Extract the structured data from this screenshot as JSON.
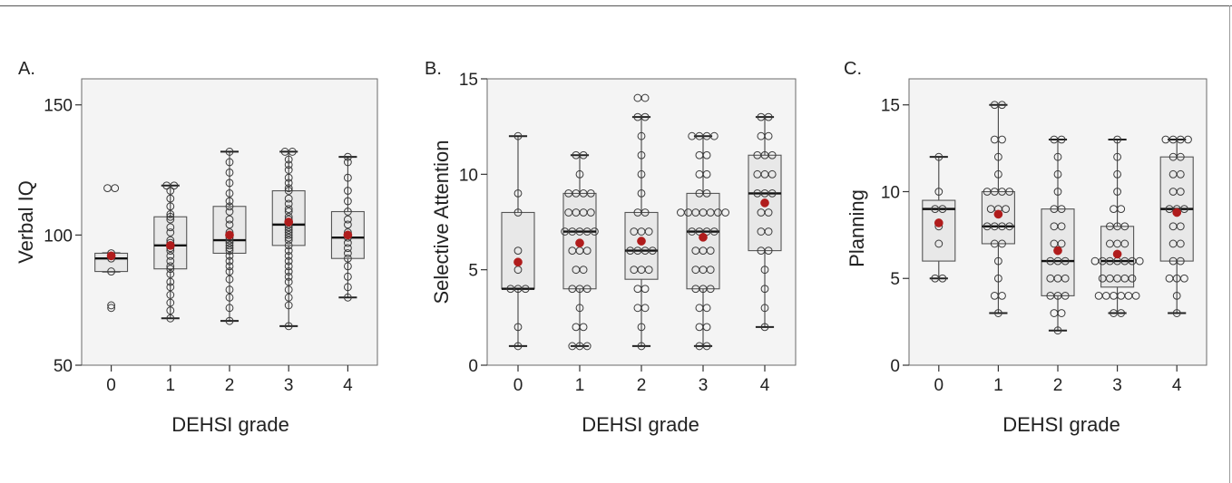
{
  "figure": {
    "accent_colors": {
      "mean_marker": "#b01c1c",
      "box_fill": "#e8e8e8",
      "plot_bg": "#f4f4f4"
    }
  },
  "chart_data": [
    {
      "type": "box",
      "panel_label": "A.",
      "xlabel": "DEHSI grade",
      "ylabel": "Verbal IQ",
      "categories": [
        "0",
        "1",
        "2",
        "3",
        "4"
      ],
      "ylim": [
        50,
        160
      ],
      "yticks": [
        50,
        100,
        150
      ],
      "boxes": [
        {
          "q1": 86,
          "median": 91,
          "q3": 93,
          "whisker_low": 86,
          "whisker_high": 93,
          "mean": 92
        },
        {
          "q1": 87,
          "median": 96,
          "q3": 107,
          "whisker_low": 68,
          "whisker_high": 119,
          "mean": 96
        },
        {
          "q1": 93,
          "median": 98,
          "q3": 111,
          "whisker_low": 67,
          "whisker_high": 132,
          "mean": 100
        },
        {
          "q1": 96,
          "median": 104,
          "q3": 117,
          "whisker_low": 65,
          "whisker_high": 132,
          "mean": 105
        },
        {
          "q1": 91,
          "median": 99,
          "q3": 109,
          "whisker_low": 76,
          "whisker_high": 130,
          "mean": 100
        }
      ],
      "points": [
        [
          118,
          118,
          93,
          92,
          91,
          86,
          73,
          72
        ],
        [
          119,
          119,
          117,
          114,
          111,
          108,
          107,
          106,
          103,
          101,
          98,
          97,
          96,
          95,
          94,
          92,
          90,
          88,
          87,
          85,
          82,
          80,
          77,
          74,
          71,
          68
        ],
        [
          132,
          128,
          124,
          120,
          116,
          113,
          111,
          109,
          106,
          104,
          101,
          99,
          98,
          97,
          96,
          95,
          94,
          92,
          90,
          88,
          86,
          83,
          79,
          76,
          72,
          67
        ],
        [
          132,
          132,
          129,
          127,
          125,
          122,
          120,
          118,
          117,
          114,
          112,
          110,
          109,
          107,
          106,
          105,
          104,
          103,
          102,
          101,
          100,
          99,
          98,
          96,
          94,
          92,
          90,
          88,
          86,
          84,
          82,
          79,
          76,
          73,
          65
        ],
        [
          130,
          128,
          122,
          117,
          113,
          109,
          106,
          104,
          101,
          100,
          99,
          97,
          95,
          93,
          91,
          88,
          84,
          80,
          76
        ]
      ]
    },
    {
      "type": "box",
      "panel_label": "B.",
      "xlabel": "DEHSI grade",
      "ylabel": "Selective Attention",
      "categories": [
        "0",
        "1",
        "2",
        "3",
        "4"
      ],
      "ylim": [
        0,
        15
      ],
      "yticks": [
        0,
        5,
        10,
        15
      ],
      "boxes": [
        {
          "q1": 4,
          "median": 4,
          "q3": 8,
          "whisker_low": 1,
          "whisker_high": 12,
          "mean": 5.4
        },
        {
          "q1": 4,
          "median": 7,
          "q3": 9,
          "whisker_low": 1,
          "whisker_high": 11,
          "mean": 6.4
        },
        {
          "q1": 4.5,
          "median": 6,
          "q3": 8,
          "whisker_low": 1,
          "whisker_high": 13,
          "mean": 6.5
        },
        {
          "q1": 4,
          "median": 7,
          "q3": 9,
          "whisker_low": 1,
          "whisker_high": 12,
          "mean": 6.7
        },
        {
          "q1": 6,
          "median": 9,
          "q3": 11,
          "whisker_low": 2,
          "whisker_high": 13,
          "mean": 8.5
        }
      ],
      "points": [
        [
          12,
          9,
          8,
          6,
          5,
          4,
          4,
          4,
          2,
          1
        ],
        [
          11,
          11,
          10,
          9,
          9,
          9,
          9,
          8,
          8,
          8,
          8,
          7,
          7,
          7,
          7,
          7,
          6,
          6,
          6,
          5,
          5,
          4,
          4,
          4,
          3,
          2,
          2,
          1,
          1,
          1
        ],
        [
          14,
          14,
          13,
          13,
          12,
          11,
          10,
          9,
          8,
          8,
          7,
          7,
          7,
          6,
          6,
          6,
          6,
          5,
          5,
          5,
          4,
          4,
          3,
          3,
          2,
          1
        ],
        [
          12,
          12,
          12,
          12,
          11,
          11,
          10,
          10,
          9,
          9,
          8,
          8,
          8,
          8,
          8,
          8,
          8,
          7,
          7,
          7,
          7,
          6,
          6,
          6,
          5,
          5,
          5,
          4,
          4,
          4,
          3,
          3,
          2,
          2,
          1,
          1
        ],
        [
          13,
          13,
          12,
          12,
          11,
          11,
          11,
          10,
          10,
          10,
          9,
          9,
          9,
          8,
          8,
          7,
          7,
          6,
          6,
          5,
          4,
          3,
          2
        ]
      ]
    },
    {
      "type": "box",
      "panel_label": "C.",
      "xlabel": "DEHSI grade",
      "ylabel": "Planning",
      "categories": [
        "0",
        "1",
        "2",
        "3",
        "4"
      ],
      "ylim": [
        0,
        16.5
      ],
      "yticks": [
        0,
        5,
        10,
        15
      ],
      "boxes": [
        {
          "q1": 6,
          "median": 9,
          "q3": 9.5,
          "whisker_low": 5,
          "whisker_high": 12,
          "mean": 8.2
        },
        {
          "q1": 7,
          "median": 8,
          "q3": 10,
          "whisker_low": 3,
          "whisker_high": 15,
          "mean": 8.7
        },
        {
          "q1": 4,
          "median": 6,
          "q3": 9,
          "whisker_low": 2,
          "whisker_high": 13,
          "mean": 6.6
        },
        {
          "q1": 4.5,
          "median": 6,
          "q3": 8,
          "whisker_low": 3,
          "whisker_high": 13,
          "mean": 6.4
        },
        {
          "q1": 6,
          "median": 9,
          "q3": 12,
          "whisker_low": 3,
          "whisker_high": 13,
          "mean": 8.8
        }
      ],
      "points": [
        [
          12,
          10,
          9,
          9,
          8,
          7,
          5,
          5
        ],
        [
          15,
          15,
          13,
          13,
          12,
          11,
          10,
          10,
          10,
          10,
          9,
          9,
          9,
          8,
          8,
          8,
          8,
          7,
          7,
          6,
          5,
          4,
          4,
          3
        ],
        [
          13,
          13,
          12,
          11,
          10,
          9,
          9,
          8,
          8,
          7,
          7,
          6,
          6,
          6,
          5,
          5,
          5,
          4,
          4,
          4,
          3,
          3,
          2
        ],
        [
          13,
          12,
          11,
          10,
          9,
          9,
          8,
          8,
          8,
          7,
          7,
          7,
          6,
          6,
          6,
          6,
          6,
          6,
          6,
          5,
          5,
          5,
          5,
          5,
          4,
          4,
          4,
          4,
          4,
          4,
          3,
          3
        ],
        [
          13,
          13,
          13,
          13,
          12,
          12,
          11,
          11,
          10,
          10,
          9,
          9,
          9,
          8,
          8,
          7,
          7,
          6,
          6,
          5,
          5,
          5,
          4,
          3
        ]
      ]
    }
  ]
}
